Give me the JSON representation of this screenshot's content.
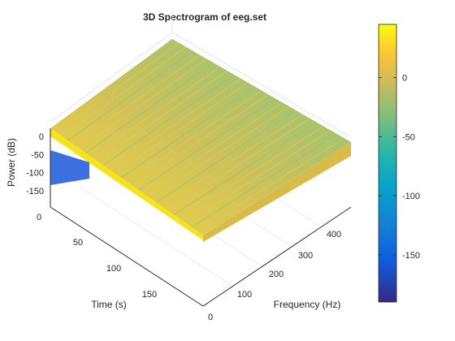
{
  "chart_data": {
    "type": "surface",
    "title": "3D Spectrogram of eeg.set",
    "xlabel": "Frequency (Hz)",
    "ylabel": "Time (s)",
    "zlabel": "Power (dB)",
    "x_ticks": [
      0,
      100,
      200,
      300,
      400
    ],
    "y_ticks": [
      0,
      50,
      100,
      150
    ],
    "z_ticks": [
      0,
      -50,
      -100,
      -150
    ],
    "xlim": [
      0,
      500
    ],
    "ylim": [
      0,
      190
    ],
    "zlim": [
      -170,
      30
    ],
    "grid": true,
    "colormap": "parula",
    "colorbar": {
      "ticks": [
        0,
        -50,
        -100,
        -150
      ],
      "range": [
        -190,
        45
      ],
      "colors": [
        "#352a87",
        "#0f5cdd",
        "#1481d6",
        "#06a4ca",
        "#2eb7a4",
        "#87bf77",
        "#d1bb59",
        "#fec832",
        "#f9fb0e"
      ]
    },
    "surface_description_values": {
      "low_frequency_power_db": [
        10,
        -20
      ],
      "high_frequency_power_db": [
        -20,
        -40
      ],
      "dc_band_power_db": [
        -110,
        -140
      ]
    }
  }
}
